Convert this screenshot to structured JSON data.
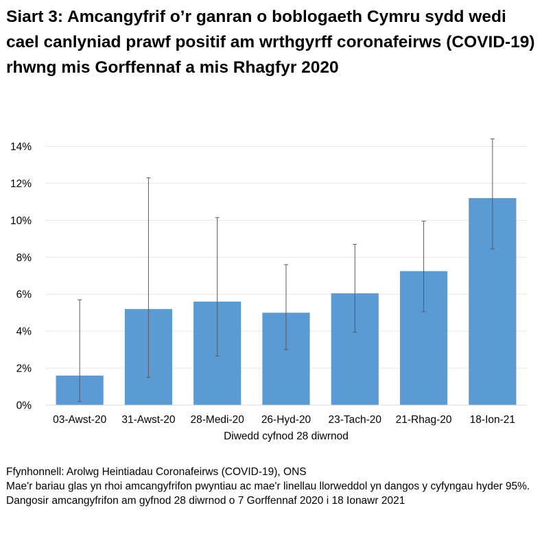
{
  "chart_data": {
    "type": "bar",
    "title": "Siart 3: Amcangyfrif o’r ganran o boblogaeth Cymru sydd wedi cael canlyniad prawf positif am wrthgyrff coronafeirws (COVID-19) rhwng mis Gorffennaf a mis Rhagfyr 2020",
    "xlabel": "Diwedd cyfnod 28 diwrnod",
    "ylabel": "",
    "categories": [
      "03-Awst-20",
      "31-Awst-20",
      "28-Medi-20",
      "26-Hyd-20",
      "23-Tach-20",
      "21-Rhag-20",
      "18-Ion-21"
    ],
    "values": [
      1.6,
      5.2,
      5.6,
      5.0,
      6.05,
      7.25,
      11.2
    ],
    "ci_lower": [
      0.2,
      1.5,
      2.65,
      3.0,
      3.95,
      5.05,
      8.45
    ],
    "ci_upper": [
      5.7,
      12.3,
      10.15,
      7.6,
      8.7,
      9.95,
      14.4
    ],
    "ylim": [
      0,
      14
    ],
    "yticks": [
      "0%",
      "2%",
      "4%",
      "6%",
      "8%",
      "10%",
      "12%",
      "14%"
    ],
    "grid": true,
    "bar_color": "#5b9bd5",
    "error_bar_color": "#595959"
  },
  "notes": {
    "source": "Ffynhonnell: Arolwg Heintiadau Coronafeirws (COVID-19), ONS",
    "description": "Mae'r bariau glas yn rhoi amcangyfrifon pwyntiau ac mae'r linellau llorweddol yn dangos y cyfyngau hyder 95%. Dangosir amcangyfrifon am gyfnod 28 diwrnod o 7 Gorffennaf 2020 i 18 Ionawr 2021"
  }
}
